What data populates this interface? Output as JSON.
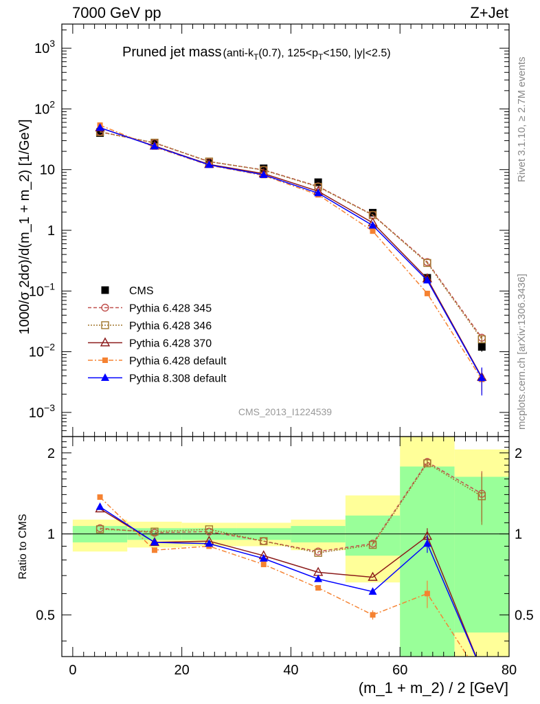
{
  "header": {
    "left": "7000 GeV pp",
    "right": "Z+Jet",
    "side_top": "Rivet 3.1.10, ≥ 2.7M events",
    "side_bottom": "mcplots.cern.ch [arXiv:1306.3436]"
  },
  "chart_data": [
    {
      "type": "line",
      "title_main": "Pruned jet mass",
      "title_cut": "(anti-k_T(0.7), 125<p_T<150, |y|<2.5)",
      "title_parts": {
        "prefix": "(anti-k",
        "sub1": "T",
        "mid": "(0.7), 125<p",
        "sub2": "T",
        "suffix": "<150, |y|<2.5)"
      },
      "ylabel": "1000/σ 2dσ)/d(m_1 + m_2) [1/GeV]",
      "yscale": "log",
      "ylim": [
        0.0004,
        2500
      ],
      "xlim": [
        -2,
        80
      ],
      "yticks": [
        {
          "value": 1000,
          "label": "10",
          "exp": "3"
        },
        {
          "value": 100,
          "label": "10",
          "exp": "2"
        },
        {
          "value": 10,
          "label": "10",
          "exp": ""
        },
        {
          "value": 1,
          "label": "1",
          "exp": ""
        },
        {
          "value": 0.1,
          "label": "10",
          "exp": "−1"
        },
        {
          "value": 0.01,
          "label": "10",
          "exp": "−2"
        },
        {
          "value": 0.001,
          "label": "10",
          "exp": "−3"
        }
      ],
      "watermark": "CMS_2013_I1224539",
      "legend_position": "middle-left",
      "x": [
        5,
        15,
        25,
        35,
        45,
        55,
        65,
        75
      ],
      "series": [
        {
          "name": "CMS",
          "marker": "filled-square",
          "color": "#000000",
          "dash": "",
          "values": [
            40,
            27,
            13,
            10.5,
            6.2,
            1.95,
            0.165,
            0.012
          ],
          "yerr": [
            3,
            2,
            1,
            0.8,
            0.5,
            0.2,
            0.02,
            0.002
          ]
        },
        {
          "name": "Pythia 6.428 345",
          "marker": "open-circle",
          "color": "#c0504d",
          "dash": "5,3",
          "values": [
            42,
            27.5,
            13.5,
            9.9,
            5.3,
            1.8,
            0.3,
            0.017
          ],
          "yerr": [
            0,
            0,
            0,
            0,
            0,
            0,
            0.01,
            0.002
          ]
        },
        {
          "name": "Pythia 6.428 346",
          "marker": "open-square",
          "color": "#a0762c",
          "dash": "2,2",
          "values": [
            41.5,
            27.8,
            13.6,
            9.8,
            5.2,
            1.78,
            0.29,
            0.016
          ],
          "yerr": [
            0,
            0,
            0,
            0,
            0,
            0,
            0.01,
            0.002
          ]
        },
        {
          "name": "Pythia 6.428 370",
          "marker": "open-triangle",
          "color": "#8b1a1a",
          "dash": "",
          "values": [
            49,
            24.5,
            12.2,
            8.6,
            4.4,
            1.33,
            0.16,
            0.0038
          ],
          "yerr": [
            0,
            0,
            0,
            0,
            0,
            0,
            0.01,
            0.0015
          ]
        },
        {
          "name": "Pythia 6.428 default",
          "marker": "filled-square-small",
          "color": "#f58231",
          "dash": "7,3,2,3",
          "values": [
            54,
            23.5,
            11.8,
            8.0,
            3.85,
            0.97,
            0.091,
            0.0035
          ],
          "yerr": [
            0,
            0,
            0,
            0,
            0,
            0,
            0.008,
            0.0015
          ]
        },
        {
          "name": "Pythia 8.308 default",
          "marker": "filled-triangle",
          "color": "#0000ff",
          "dash": "",
          "values": [
            49,
            24.2,
            12.0,
            8.2,
            4.1,
            1.2,
            0.15,
            0.0037
          ],
          "yerr": [
            0,
            0,
            0,
            0,
            0,
            0,
            0.01,
            0.0018
          ]
        }
      ]
    },
    {
      "type": "line",
      "ylabel": "Ratio to CMS",
      "xlabel": "(m_1 + m_2) / 2 [GeV]",
      "xlim": [
        -2,
        80
      ],
      "ylim": [
        0.35,
        2.3
      ],
      "yscale": "log",
      "xticks": [
        0,
        20,
        40,
        60,
        80
      ],
      "yticks": [
        0.5,
        1,
        2
      ],
      "bands": [
        {
          "x": [
            0,
            10
          ],
          "green": [
            0.93,
            1.07
          ],
          "yellow": [
            0.86,
            1.13
          ]
        },
        {
          "x": [
            10,
            20
          ],
          "green": [
            0.95,
            1.05
          ],
          "yellow": [
            0.89,
            1.11
          ]
        },
        {
          "x": [
            20,
            30
          ],
          "green": [
            0.95,
            1.05
          ],
          "yellow": [
            0.9,
            1.1
          ]
        },
        {
          "x": [
            30,
            40
          ],
          "green": [
            0.95,
            1.05
          ],
          "yellow": [
            0.9,
            1.1
          ]
        },
        {
          "x": [
            40,
            50
          ],
          "green": [
            0.93,
            1.07
          ],
          "yellow": [
            0.87,
            1.13
          ]
        },
        {
          "x": [
            50,
            60
          ],
          "green": [
            0.83,
            1.17
          ],
          "yellow": [
            0.66,
            1.39
          ]
        },
        {
          "x": [
            60,
            70
          ],
          "green": [
            0.35,
            1.78
          ],
          "yellow": [
            0.35,
            2.3
          ]
        },
        {
          "x": [
            70,
            80
          ],
          "green": [
            0.43,
            1.63
          ],
          "yellow": [
            0.35,
            2.06
          ]
        }
      ],
      "x": [
        5,
        15,
        25,
        35,
        45,
        55,
        65,
        75
      ],
      "series": [
        {
          "name": "Pythia 6.428 345",
          "values": [
            1.05,
            1.01,
            1.02,
            0.94,
            0.86,
            0.92,
            1.85,
            1.41
          ],
          "yerr": [
            0,
            0,
            0,
            0,
            0,
            0,
            0.05,
            0.3
          ]
        },
        {
          "name": "Pythia 6.428 346",
          "values": [
            1.04,
            1.02,
            1.04,
            0.94,
            0.85,
            0.91,
            1.83,
            1.38
          ],
          "yerr": [
            0,
            0,
            0,
            0,
            0,
            0,
            0.05,
            0.3
          ]
        },
        {
          "name": "Pythia 6.428 370",
          "values": [
            1.24,
            0.93,
            0.94,
            0.83,
            0.72,
            0.69,
            0.98,
            0.31
          ],
          "yerr": [
            0,
            0,
            0,
            0,
            0,
            0,
            0.07,
            0
          ]
        },
        {
          "name": "Pythia 6.428 default",
          "values": [
            1.37,
            0.87,
            0.9,
            0.77,
            0.63,
            0.5,
            0.6,
            0.29
          ],
          "yerr": [
            0,
            0,
            0,
            0,
            0,
            0.02,
            0.07,
            0
          ]
        },
        {
          "name": "Pythia 8.308 default",
          "values": [
            1.26,
            0.93,
            0.92,
            0.81,
            0.68,
            0.61,
            0.92,
            0.31
          ],
          "yerr": [
            0,
            0,
            0,
            0,
            0,
            0,
            0.07,
            0
          ]
        }
      ]
    }
  ]
}
